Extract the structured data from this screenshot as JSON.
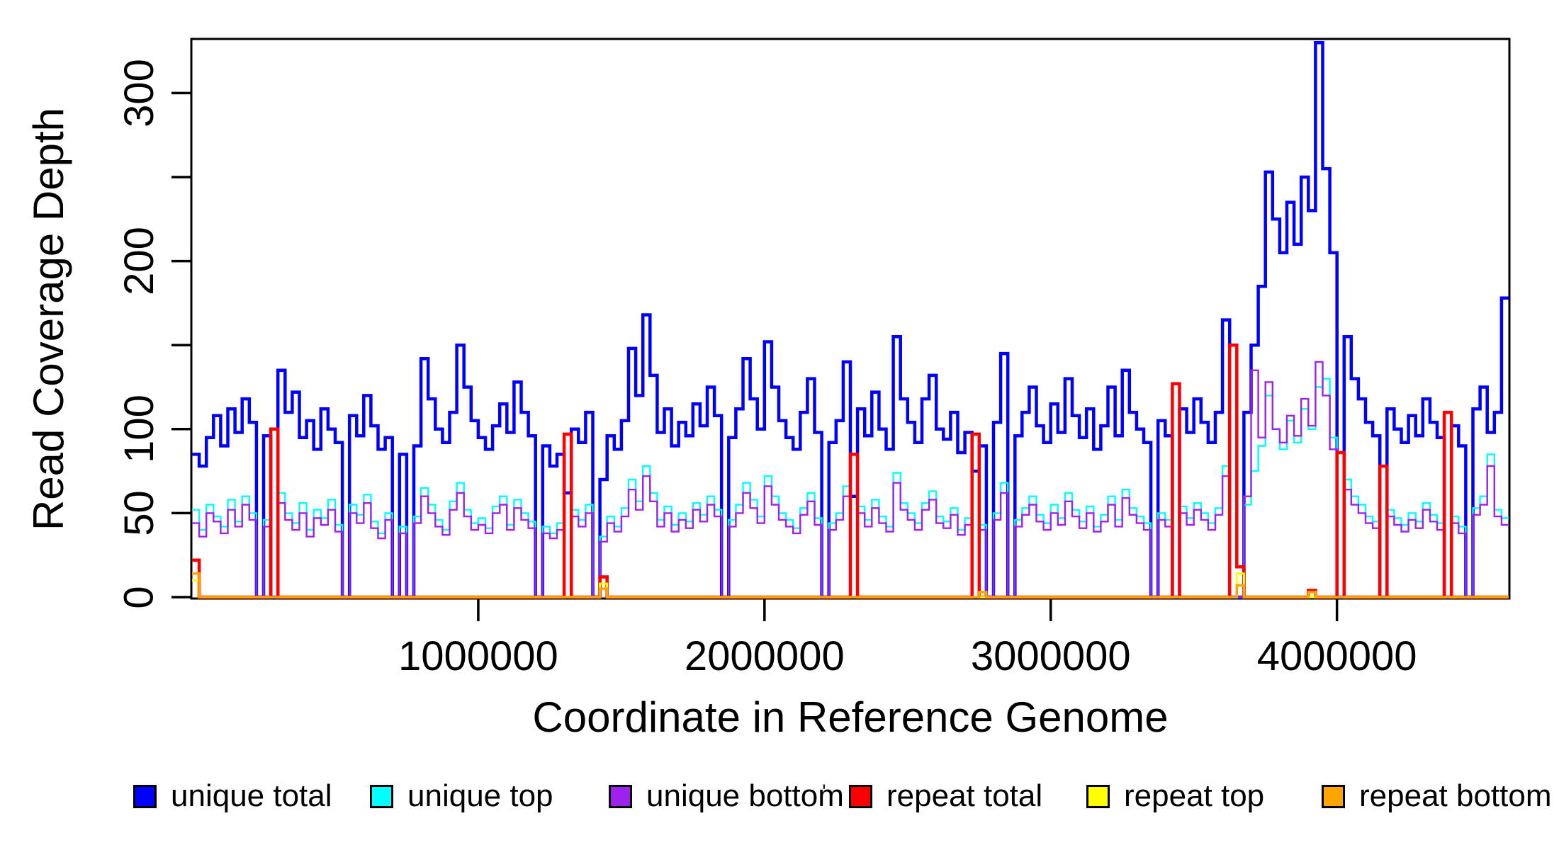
{
  "colors": {
    "unique_total": "#0000FF",
    "unique_top": "#00FFFF",
    "unique_bottom": "#A020F0",
    "repeat_total": "#FF0000",
    "repeat_top": "#FFFF00",
    "repeat_bottom": "#FFA500",
    "axis": "#000000"
  },
  "y_axis": {
    "title": "Read Coverage Depth",
    "ticks": [
      {
        "value": 0,
        "label": "0"
      },
      {
        "value": 50,
        "label": "50"
      },
      {
        "value": 100,
        "label": "100"
      },
      {
        "value": 150,
        "label": ""
      },
      {
        "value": 200,
        "label": "200"
      },
      {
        "value": 250,
        "label": ""
      },
      {
        "value": 300,
        "label": "300"
      }
    ],
    "range": [
      0,
      332
    ]
  },
  "x_axis": {
    "title": "Coordinate in Reference Genome",
    "ticks": [
      {
        "value": 1000000,
        "label": "1000000"
      },
      {
        "value": 2000000,
        "label": "2000000"
      },
      {
        "value": 3000000,
        "label": "3000000"
      },
      {
        "value": 4000000,
        "label": "4000000"
      }
    ],
    "range": [
      0,
      4600000
    ]
  },
  "legend": {
    "items": [
      {
        "label": "unique total",
        "color": "#0000FF"
      },
      {
        "label": "unique top",
        "color": "#00FFFF"
      },
      {
        "label": "unique bottom",
        "color": "#A020F0"
      },
      {
        "label": "repeat total",
        "color": "#FF0000"
      },
      {
        "label": "repeat top",
        "color": "#FFFF00"
      },
      {
        "label": "repeat bottom",
        "color": "#FFA500"
      }
    ]
  },
  "stray_mark": "'",
  "chart_data": {
    "type": "line",
    "step": true,
    "title": "",
    "xlabel": "Coordinate in Reference Genome",
    "ylabel": "Read Coverage Depth",
    "x_start": 0,
    "bin_size": 25000,
    "xlim": [
      0,
      4600000
    ],
    "ylim": [
      0,
      332
    ],
    "grid": false,
    "legend_position": "bottom",
    "series": [
      {
        "name": "unique total",
        "color": "#0000FF",
        "lwd": 4.5,
        "values": [
          85,
          78,
          95,
          108,
          90,
          112,
          98,
          118,
          104,
          0,
          96,
          0,
          135,
          110,
          122,
          95,
          105,
          88,
          112,
          100,
          92,
          0,
          108,
          96,
          120,
          102,
          88,
          95,
          0,
          85,
          0,
          90,
          142,
          118,
          100,
          92,
          110,
          150,
          125,
          105,
          95,
          88,
          102,
          115,
          98,
          128,
          110,
          96,
          0,
          90,
          78,
          85,
          62,
          100,
          92,
          110,
          0,
          70,
          96,
          88,
          105,
          148,
          120,
          168,
          132,
          98,
          112,
          90,
          104,
          96,
          115,
          102,
          125,
          108,
          0,
          95,
          112,
          142,
          118,
          100,
          152,
          125,
          105,
          95,
          88,
          110,
          130,
          98,
          0,
          92,
          105,
          140,
          60,
          112,
          96,
          122,
          100,
          88,
          155,
          118,
          104,
          92,
          118,
          132,
          100,
          94,
          110,
          86,
          98,
          75,
          90,
          0,
          104,
          145,
          0,
          96,
          110,
          125,
          102,
          92,
          115,
          98,
          130,
          108,
          95,
          112,
          88,
          102,
          125,
          96,
          135,
          110,
          100,
          92,
          0,
          105,
          96,
          0,
          112,
          98,
          118,
          104,
          92,
          110,
          165,
          0,
          0,
          110,
          150,
          185,
          253,
          225,
          205,
          235,
          210,
          250,
          230,
          330,
          255,
          205,
          0,
          155,
          130,
          118,
          104,
          96,
          0,
          112,
          100,
          92,
          108,
          96,
          118,
          104,
          95,
          0,
          102,
          90,
          0,
          112,
          125,
          98,
          110,
          178
        ]
      },
      {
        "name": "unique top",
        "color": "#00FFFF",
        "lwd": 2.4,
        "values": [
          52,
          40,
          55,
          48,
          42,
          58,
          45,
          60,
          50,
          0,
          46,
          0,
          62,
          50,
          44,
          56,
          40,
          52,
          47,
          58,
          43,
          0,
          55,
          49,
          61,
          45,
          38,
          50,
          0,
          42,
          0,
          48,
          65,
          55,
          46,
          40,
          57,
          68,
          52,
          44,
          47,
          41,
          54,
          60,
          43,
          58,
          50,
          45,
          0,
          42,
          38,
          44,
          0,
          52,
          46,
          55,
          0,
          36,
          48,
          42,
          53,
          70,
          57,
          78,
          62,
          46,
          54,
          43,
          50,
          45,
          56,
          49,
          60,
          52,
          0,
          46,
          55,
          68,
          58,
          48,
          72,
          60,
          50,
          46,
          41,
          53,
          62,
          47,
          0,
          44,
          50,
          66,
          0,
          54,
          46,
          58,
          48,
          42,
          74,
          56,
          50,
          44,
          56,
          63,
          48,
          45,
          53,
          40,
          47,
          0,
          43,
          0,
          50,
          68,
          0,
          46,
          53,
          60,
          49,
          44,
          55,
          47,
          62,
          52,
          45,
          54,
          42,
          49,
          60,
          46,
          64,
          53,
          48,
          44,
          0,
          50,
          46,
          0,
          54,
          47,
          56,
          50,
          44,
          53,
          78,
          0,
          0,
          55,
          75,
          90,
          120,
          100,
          88,
          105,
          92,
          112,
          100,
          125,
          130,
          95,
          0,
          70,
          60,
          55,
          48,
          45,
          0,
          52,
          47,
          43,
          50,
          45,
          56,
          49,
          44,
          0,
          48,
          42,
          0,
          53,
          60,
          85,
          52,
          47
        ]
      },
      {
        "name": "unique bottom",
        "color": "#A020F0",
        "lwd": 2.4,
        "values": [
          44,
          36,
          50,
          45,
          38,
          52,
          42,
          55,
          46,
          0,
          42,
          0,
          56,
          46,
          40,
          50,
          36,
          47,
          43,
          52,
          39,
          0,
          50,
          44,
          56,
          41,
          35,
          46,
          0,
          38,
          0,
          44,
          60,
          50,
          42,
          37,
          52,
          62,
          48,
          40,
          43,
          38,
          50,
          55,
          40,
          53,
          46,
          41,
          0,
          38,
          35,
          40,
          0,
          48,
          42,
          50,
          0,
          33,
          44,
          39,
          48,
          64,
          52,
          72,
          57,
          42,
          50,
          39,
          46,
          41,
          52,
          45,
          55,
          48,
          0,
          42,
          50,
          62,
          53,
          44,
          66,
          55,
          46,
          42,
          38,
          49,
          57,
          43,
          0,
          40,
          46,
          60,
          0,
          50,
          42,
          53,
          44,
          39,
          68,
          52,
          46,
          40,
          52,
          58,
          44,
          41,
          49,
          37,
          43,
          0,
          40,
          0,
          46,
          62,
          0,
          42,
          49,
          55,
          45,
          40,
          50,
          43,
          57,
          48,
          41,
          50,
          39,
          45,
          55,
          42,
          59,
          49,
          44,
          40,
          0,
          46,
          42,
          0,
          50,
          43,
          52,
          46,
          40,
          49,
          72,
          0,
          0,
          60,
          135,
          95,
          128,
          100,
          92,
          108,
          96,
          118,
          102,
          140,
          120,
          88,
          0,
          64,
          55,
          50,
          44,
          41,
          0,
          48,
          43,
          39,
          46,
          41,
          52,
          45,
          40,
          0,
          44,
          38,
          0,
          49,
          55,
          78,
          48,
          43
        ]
      },
      {
        "name": "repeat total",
        "color": "#FF0000",
        "lwd": 4.5,
        "values": [
          22,
          0,
          0,
          0,
          0,
          0,
          0,
          0,
          0,
          0,
          0,
          100,
          0,
          0,
          0,
          0,
          0,
          0,
          0,
          0,
          0,
          0,
          0,
          0,
          0,
          0,
          0,
          0,
          0,
          0,
          0,
          0,
          0,
          0,
          0,
          0,
          0,
          0,
          0,
          0,
          0,
          0,
          0,
          0,
          0,
          0,
          0,
          0,
          0,
          0,
          0,
          0,
          97,
          0,
          0,
          0,
          0,
          12,
          0,
          0,
          0,
          0,
          0,
          0,
          0,
          0,
          0,
          0,
          0,
          0,
          0,
          0,
          0,
          0,
          0,
          0,
          0,
          0,
          0,
          0,
          0,
          0,
          0,
          0,
          0,
          0,
          0,
          0,
          0,
          0,
          0,
          0,
          85,
          0,
          0,
          0,
          0,
          0,
          0,
          0,
          0,
          0,
          0,
          0,
          0,
          0,
          0,
          0,
          0,
          97,
          0,
          0,
          0,
          0,
          0,
          0,
          0,
          0,
          0,
          0,
          0,
          0,
          0,
          0,
          0,
          0,
          0,
          0,
          0,
          0,
          0,
          0,
          0,
          0,
          0,
          0,
          0,
          127,
          0,
          0,
          0,
          0,
          0,
          0,
          0,
          150,
          18,
          0,
          0,
          0,
          0,
          0,
          0,
          0,
          0,
          0,
          4,
          0,
          0,
          0,
          86,
          0,
          0,
          0,
          0,
          0,
          78,
          0,
          0,
          0,
          0,
          0,
          0,
          0,
          0,
          110,
          0,
          0,
          0,
          0,
          0,
          0,
          0,
          0
        ]
      },
      {
        "name": "repeat top",
        "color": "#FFFF00",
        "lwd": 3,
        "values": [
          10,
          0,
          0,
          0,
          0,
          0,
          0,
          0,
          0,
          0,
          0,
          0,
          0,
          0,
          0,
          0,
          0,
          0,
          0,
          0,
          0,
          0,
          0,
          0,
          0,
          0,
          0,
          0,
          0,
          0,
          0,
          0,
          0,
          0,
          0,
          0,
          0,
          0,
          0,
          0,
          0,
          0,
          0,
          0,
          0,
          0,
          0,
          0,
          0,
          0,
          0,
          0,
          0,
          0,
          0,
          0,
          0,
          8,
          0,
          0,
          0,
          0,
          0,
          0,
          0,
          0,
          0,
          0,
          0,
          0,
          0,
          0,
          0,
          0,
          0,
          0,
          0,
          0,
          0,
          0,
          0,
          0,
          0,
          0,
          0,
          0,
          0,
          0,
          0,
          0,
          0,
          0,
          0,
          0,
          0,
          0,
          0,
          0,
          0,
          0,
          0,
          0,
          0,
          0,
          0,
          0,
          0,
          0,
          0,
          0,
          0,
          0,
          0,
          0,
          0,
          0,
          0,
          0,
          0,
          0,
          0,
          0,
          0,
          0,
          0,
          0,
          0,
          0,
          0,
          0,
          0,
          0,
          0,
          0,
          0,
          0,
          0,
          0,
          0,
          0,
          0,
          0,
          0,
          0,
          0,
          0,
          14,
          0,
          0,
          0,
          0,
          0,
          0,
          0,
          0,
          0,
          0,
          0,
          0,
          0,
          0,
          0,
          0,
          0,
          0,
          0,
          0,
          0,
          0,
          0,
          0,
          0,
          0,
          0,
          0,
          0,
          0,
          0,
          0,
          0,
          0,
          0,
          0,
          0
        ]
      },
      {
        "name": "repeat bottom",
        "color": "#FFA500",
        "lwd": 3.5,
        "values": [
          14,
          0,
          0,
          0,
          0,
          0,
          0,
          0,
          0,
          0,
          0,
          0,
          0,
          0,
          0,
          0,
          0,
          0,
          0,
          0,
          0,
          0,
          0,
          0,
          0,
          0,
          0,
          0,
          0,
          0,
          0,
          0,
          0,
          0,
          0,
          0,
          0,
          0,
          0,
          0,
          0,
          0,
          0,
          0,
          0,
          0,
          0,
          0,
          0,
          0,
          0,
          0,
          0,
          0,
          0,
          0,
          0,
          5,
          0,
          0,
          0,
          0,
          0,
          0,
          0,
          0,
          0,
          0,
          0,
          0,
          0,
          0,
          0,
          0,
          0,
          0,
          0,
          0,
          0,
          0,
          0,
          0,
          0,
          0,
          0,
          0,
          0,
          0,
          0,
          0,
          0,
          0,
          0,
          0,
          0,
          0,
          0,
          0,
          0,
          0,
          0,
          0,
          0,
          0,
          0,
          0,
          0,
          0,
          0,
          0,
          3,
          0,
          0,
          0,
          0,
          0,
          0,
          0,
          0,
          0,
          0,
          0,
          0,
          0,
          0,
          0,
          0,
          0,
          0,
          0,
          0,
          0,
          0,
          0,
          0,
          0,
          0,
          0,
          0,
          0,
          0,
          0,
          0,
          0,
          0,
          0,
          7,
          0,
          0,
          0,
          0,
          0,
          0,
          0,
          0,
          0,
          3,
          0,
          0,
          0,
          0,
          0,
          0,
          0,
          0,
          0,
          0,
          0,
          0,
          0,
          0,
          0,
          0,
          0,
          0,
          0,
          0,
          0,
          0,
          0,
          0,
          0,
          0,
          0
        ]
      }
    ]
  }
}
